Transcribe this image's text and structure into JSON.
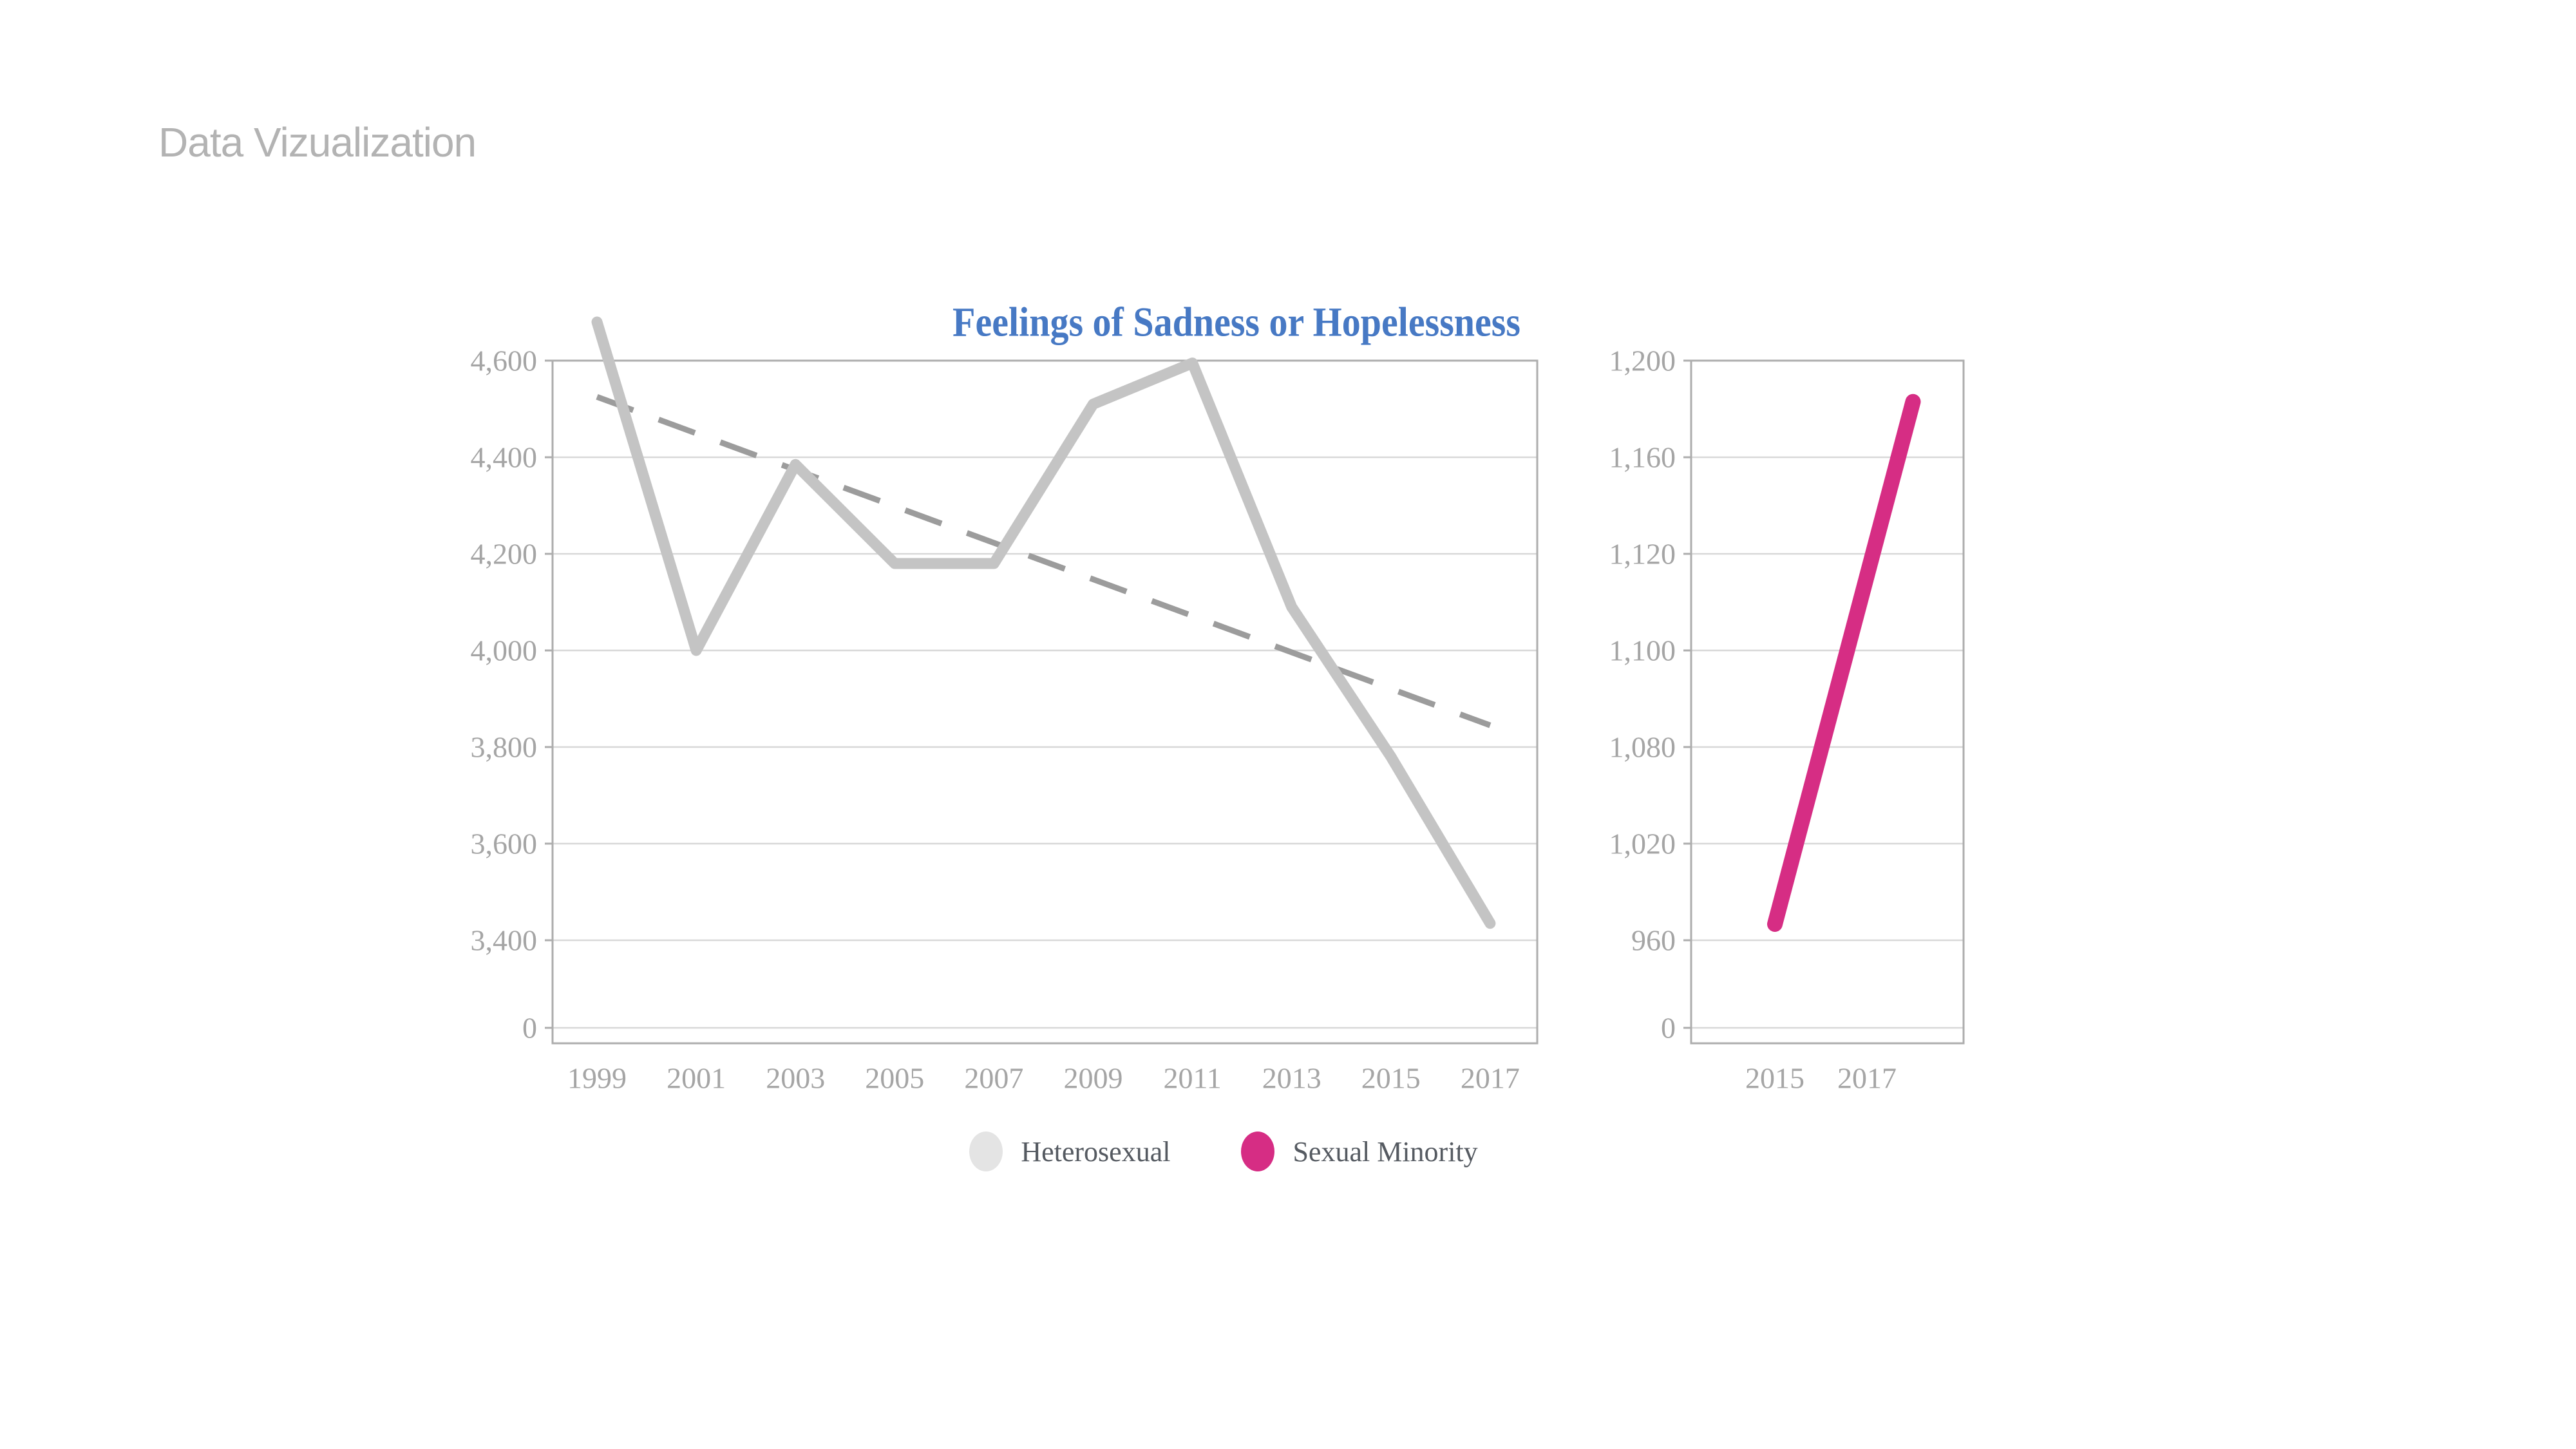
{
  "header": {
    "text": "Data Vizualization"
  },
  "title": {
    "text": "Feelings of Sadness or Hopelessness",
    "color": "#4779c4"
  },
  "legend": {
    "items": [
      {
        "label": "Heterosexual",
        "color": "#e4e4e4"
      },
      {
        "label": "Sexual Minority",
        "color": "#d62d84"
      }
    ],
    "text_color": "#555a61"
  },
  "axis_style": {
    "label_color": "#a5a5a5",
    "grid_color": "#d8d8d8",
    "border_color": "#adadad"
  },
  "chart_data": [
    {
      "type": "line",
      "title": "Feelings of Sadness or Hopelessness",
      "xlabel": "",
      "ylabel": "",
      "x_ticks": [
        1999,
        2001,
        2003,
        2005,
        2007,
        2009,
        2011,
        2013,
        2015,
        2017
      ],
      "y_ticks": [
        0,
        3400,
        3600,
        3800,
        4000,
        4200,
        4400,
        4600
      ],
      "axis_note": "broken y-axis: 0 is drawn compressed just below 3,400; grid on; no markers; line starts above plot top",
      "series": [
        {
          "name": "Heterosexual",
          "color": "#c4c4c4",
          "x": [
            1999,
            2001,
            2003,
            2005,
            2007,
            2009,
            2011,
            2013,
            2015,
            2017
          ],
          "values": [
            4680,
            4000,
            4385,
            4180,
            4180,
            4510,
            4595,
            4090,
            3780,
            3435
          ]
        }
      ],
      "trendline": {
        "name": "Heterosexual linear trend",
        "style": "dashed",
        "color": "#9c9c9c",
        "x": [
          1999,
          2017
        ],
        "values": [
          4525,
          3845
        ]
      },
      "grid": true,
      "legend_position": "bottom"
    },
    {
      "type": "line",
      "title": "",
      "xlabel": "",
      "ylabel": "",
      "x_ticks": [
        2015,
        2017
      ],
      "y_ticks": [
        0,
        960,
        1020,
        1080,
        1100,
        1120,
        1160,
        1200
      ],
      "axis_note": "tick values unevenly spaced but gridlines evenly spaced; 0 drawn compressed just below 960; grid on",
      "series": [
        {
          "name": "Sexual Minority",
          "color": "#d62d84",
          "x": [
            2015,
            2018
          ],
          "values": [
            970,
            1183
          ]
        }
      ],
      "grid": true
    }
  ]
}
